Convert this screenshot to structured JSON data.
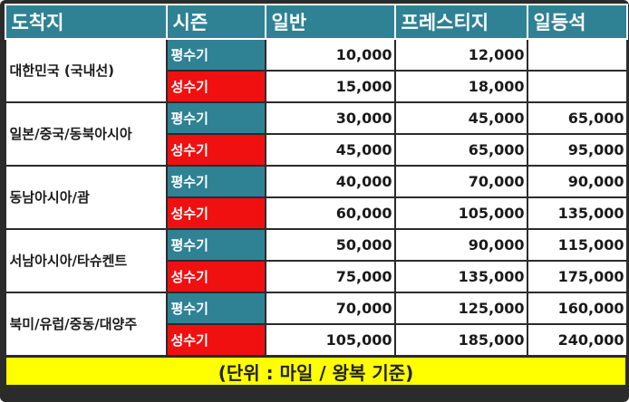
{
  "headers": {
    "destination": "도착지",
    "season": "시즌",
    "economy": "일반",
    "prestige": "프레스티지",
    "first": "일등석"
  },
  "regions": [
    {
      "name": "대한민국 (국내선)",
      "rows": [
        {
          "season": "평수기",
          "economy": "10,000",
          "prestige": "12,000",
          "first": ""
        },
        {
          "season": "성수기",
          "economy": "15,000",
          "prestige": "18,000",
          "first": ""
        }
      ]
    },
    {
      "name": "일본/중국/동북아시아",
      "rows": [
        {
          "season": "평수기",
          "economy": "30,000",
          "prestige": "45,000",
          "first": "65,000"
        },
        {
          "season": "성수기",
          "economy": "45,000",
          "prestige": "65,000",
          "first": "95,000"
        }
      ]
    },
    {
      "name": "동남아시아/괌",
      "rows": [
        {
          "season": "평수기",
          "economy": "40,000",
          "prestige": "70,000",
          "first": "90,000"
        },
        {
          "season": "성수기",
          "economy": "60,000",
          "prestige": "105,000",
          "first": "135,000"
        }
      ]
    },
    {
      "name": "서남아시아/타슈켄트",
      "rows": [
        {
          "season": "평수기",
          "economy": "50,000",
          "prestige": "90,000",
          "first": "115,000"
        },
        {
          "season": "성수기",
          "economy": "75,000",
          "prestige": "135,000",
          "first": "175,000"
        }
      ]
    },
    {
      "name": "북미/유럽/중동/대양주",
      "rows": [
        {
          "season": "평수기",
          "economy": "70,000",
          "prestige": "125,000",
          "first": "160,000"
        },
        {
          "season": "성수기",
          "economy": "105,000",
          "prestige": "185,000",
          "first": "240,000"
        }
      ]
    }
  ],
  "footer": "(단위 : 마일 / 왕복 기준)",
  "colors": {
    "header_bg": "#2e8294",
    "off_season_bg": "#2e8294",
    "peak_season_bg": "#f01010",
    "footer_bg": "#ffff00",
    "border": "#2b2b2b"
  }
}
